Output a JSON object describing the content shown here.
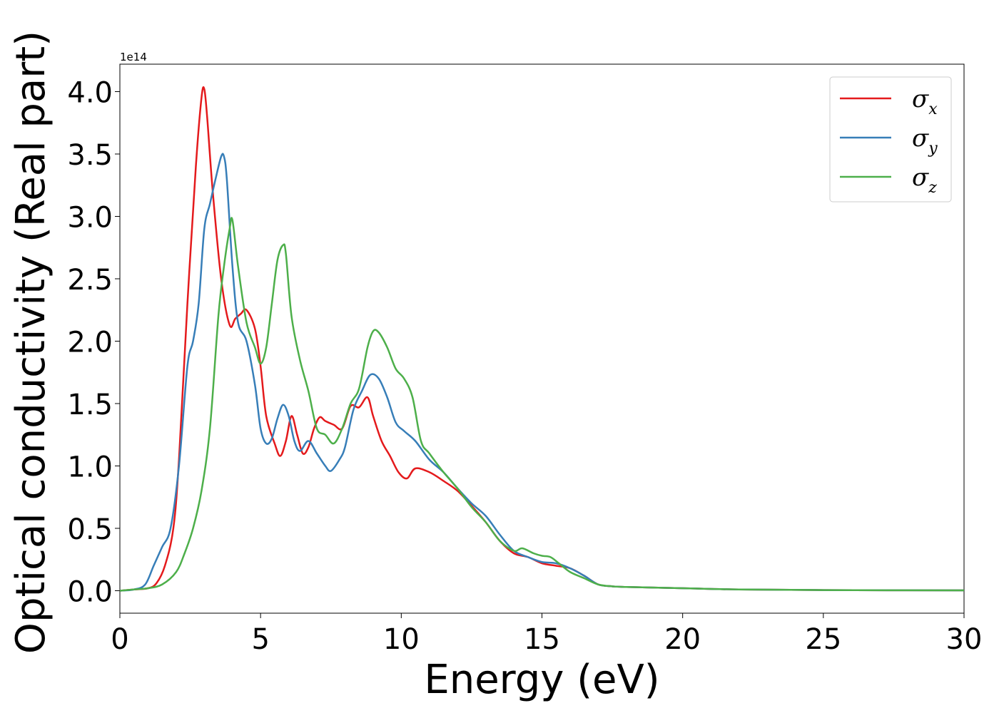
{
  "chart_data": {
    "type": "line",
    "title": "",
    "xlabel": "Energy (eV)",
    "ylabel": "Optical conductivity (Real part)",
    "y_offset_label": "1e14",
    "y_scale_factor": 100000000000000.0,
    "xlim": [
      0,
      30
    ],
    "ylim": [
      -0.18,
      4.22
    ],
    "x_ticks": [
      0,
      5,
      10,
      15,
      20,
      25,
      30
    ],
    "x_tick_labels": [
      "0",
      "5",
      "10",
      "15",
      "20",
      "25",
      "30"
    ],
    "y_ticks": [
      0.0,
      0.5,
      1.0,
      1.5,
      2.0,
      2.5,
      3.0,
      3.5,
      4.0
    ],
    "y_tick_labels": [
      "0.0",
      "0.5",
      "1.0",
      "1.5",
      "2.0",
      "2.5",
      "3.0",
      "3.5",
      "4.0"
    ],
    "grid": false,
    "legend_position": "top-right",
    "series": [
      {
        "name": "σx",
        "legend_symbol": "σ",
        "legend_subscript": "x",
        "color": "#e41a1c",
        "x": [
          0,
          0.5,
          1.0,
          1.3,
          1.6,
          1.9,
          2.1,
          2.4,
          2.7,
          2.9,
          3.0,
          3.1,
          3.3,
          3.6,
          3.9,
          4.1,
          4.3,
          4.5,
          4.8,
          5.0,
          5.2,
          5.5,
          5.7,
          5.9,
          6.1,
          6.3,
          6.5,
          6.7,
          6.9,
          7.1,
          7.3,
          7.6,
          7.9,
          8.2,
          8.5,
          8.8,
          9.0,
          9.3,
          9.6,
          9.9,
          10.2,
          10.5,
          11.0,
          11.5,
          12.0,
          12.5,
          13.0,
          13.5,
          14.0,
          14.5,
          15.0,
          15.5,
          16.0,
          16.5,
          17.0,
          17.5,
          18.0,
          20.0,
          22.0,
          25.0,
          30.0
        ],
        "y": [
          0.0,
          0.01,
          0.02,
          0.06,
          0.2,
          0.5,
          1.05,
          2.3,
          3.4,
          3.95,
          4.02,
          3.8,
          3.2,
          2.5,
          2.13,
          2.18,
          2.22,
          2.25,
          2.1,
          1.8,
          1.4,
          1.18,
          1.08,
          1.2,
          1.4,
          1.25,
          1.1,
          1.15,
          1.3,
          1.39,
          1.36,
          1.33,
          1.3,
          1.48,
          1.47,
          1.55,
          1.4,
          1.2,
          1.08,
          0.95,
          0.9,
          0.98,
          0.95,
          0.88,
          0.8,
          0.68,
          0.55,
          0.4,
          0.3,
          0.27,
          0.22,
          0.2,
          0.18,
          0.12,
          0.05,
          0.035,
          0.03,
          0.02,
          0.01,
          0.005,
          0.003
        ]
      },
      {
        "name": "σy",
        "legend_symbol": "σ",
        "legend_subscript": "y",
        "color": "#377eb8",
        "x": [
          0,
          0.5,
          0.9,
          1.2,
          1.5,
          1.8,
          2.1,
          2.4,
          2.6,
          2.8,
          3.0,
          3.2,
          3.4,
          3.6,
          3.7,
          3.8,
          4.0,
          4.2,
          4.5,
          4.8,
          5.0,
          5.2,
          5.4,
          5.6,
          5.8,
          6.0,
          6.2,
          6.4,
          6.7,
          7.0,
          7.3,
          7.5,
          7.8,
          8.0,
          8.3,
          8.6,
          8.9,
          9.2,
          9.5,
          9.8,
          10.1,
          10.5,
          11.0,
          11.5,
          12.0,
          12.5,
          13.0,
          13.5,
          14.0,
          14.5,
          15.0,
          15.5,
          16.0,
          16.5,
          17.0,
          17.5,
          18.0,
          20.0,
          22.0,
          25.0,
          30.0
        ],
        "y": [
          0.0,
          0.01,
          0.05,
          0.2,
          0.35,
          0.5,
          1.0,
          1.8,
          2.0,
          2.3,
          2.9,
          3.1,
          3.3,
          3.48,
          3.48,
          3.3,
          2.6,
          2.15,
          2.0,
          1.65,
          1.3,
          1.18,
          1.22,
          1.38,
          1.49,
          1.4,
          1.2,
          1.12,
          1.2,
          1.1,
          1.0,
          0.96,
          1.05,
          1.15,
          1.45,
          1.6,
          1.73,
          1.7,
          1.55,
          1.35,
          1.28,
          1.2,
          1.05,
          0.95,
          0.82,
          0.7,
          0.6,
          0.45,
          0.32,
          0.27,
          0.23,
          0.22,
          0.18,
          0.12,
          0.05,
          0.035,
          0.03,
          0.02,
          0.01,
          0.005,
          0.003
        ]
      },
      {
        "name": "σz",
        "legend_symbol": "σ",
        "legend_subscript": "z",
        "color": "#4daf4a",
        "x": [
          0,
          0.5,
          1.0,
          1.5,
          2.0,
          2.3,
          2.6,
          2.9,
          3.2,
          3.5,
          3.7,
          3.9,
          4.0,
          4.2,
          4.5,
          4.8,
          5.0,
          5.2,
          5.4,
          5.6,
          5.8,
          5.9,
          6.1,
          6.4,
          6.7,
          7.0,
          7.3,
          7.6,
          7.9,
          8.2,
          8.5,
          8.8,
          9.0,
          9.2,
          9.5,
          9.8,
          10.1,
          10.4,
          10.7,
          11.0,
          11.5,
          12.0,
          12.5,
          13.0,
          13.5,
          14.0,
          14.3,
          14.7,
          15.0,
          15.3,
          15.6,
          16.0,
          16.5,
          17.0,
          17.5,
          18.0,
          20.0,
          22.0,
          25.0,
          30.0
        ],
        "y": [
          0.0,
          0.01,
          0.02,
          0.05,
          0.15,
          0.3,
          0.5,
          0.8,
          1.3,
          2.2,
          2.6,
          2.9,
          2.97,
          2.6,
          2.15,
          1.95,
          1.82,
          1.95,
          2.3,
          2.65,
          2.77,
          2.7,
          2.2,
          1.85,
          1.6,
          1.3,
          1.25,
          1.18,
          1.3,
          1.5,
          1.62,
          1.95,
          2.08,
          2.07,
          1.95,
          1.78,
          1.7,
          1.55,
          1.2,
          1.1,
          0.95,
          0.82,
          0.67,
          0.55,
          0.4,
          0.32,
          0.34,
          0.3,
          0.28,
          0.27,
          0.22,
          0.15,
          0.1,
          0.05,
          0.035,
          0.03,
          0.02,
          0.01,
          0.005,
          0.003
        ]
      }
    ]
  }
}
